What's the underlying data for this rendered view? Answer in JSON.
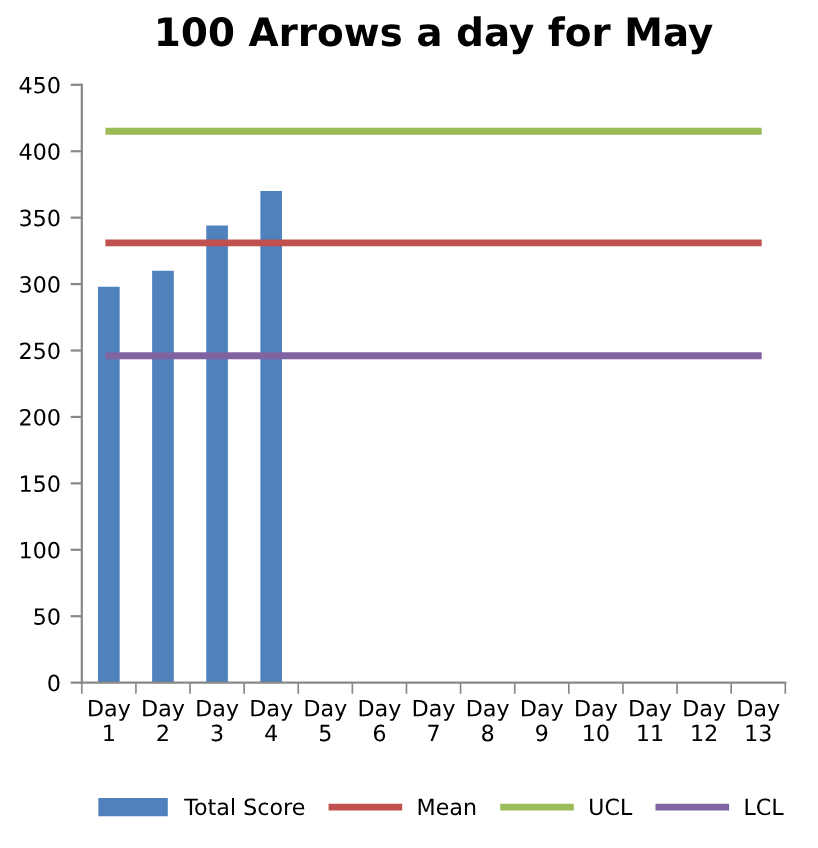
{
  "chart_data": {
    "type": "bar",
    "title": "100 Arrows a day for May",
    "categories": [
      "Day 1",
      "Day 2",
      "Day 3",
      "Day 4",
      "Day 5",
      "Day 6",
      "Day 7",
      "Day 8",
      "Day 9",
      "Day 10",
      "Day 11",
      "Day 12",
      "Day 13"
    ],
    "series": [
      {
        "name": "Total Score",
        "color": "#4f81bd",
        "values": [
          298,
          310,
          344,
          370,
          null,
          null,
          null,
          null,
          null,
          null,
          null,
          null,
          null
        ]
      },
      {
        "name": "Mean",
        "type": "line",
        "color": "#c0504d",
        "values": [
          331,
          331,
          331,
          331,
          331,
          331,
          331,
          331,
          331,
          331,
          331,
          331,
          331
        ]
      },
      {
        "name": "UCL",
        "type": "line",
        "color": "#9bbb59",
        "values": [
          415,
          415,
          415,
          415,
          415,
          415,
          415,
          415,
          415,
          415,
          415,
          415,
          415
        ]
      },
      {
        "name": "LCL",
        "type": "line",
        "color": "#8064a2",
        "values": [
          246,
          246,
          246,
          246,
          246,
          246,
          246,
          246,
          246,
          246,
          246,
          246,
          246
        ]
      }
    ],
    "ylim": [
      0,
      450
    ],
    "yticks": [
      0,
      50,
      100,
      150,
      200,
      250,
      300,
      350,
      400,
      450
    ],
    "grid": false,
    "legend": "bottom",
    "marker": "none"
  }
}
